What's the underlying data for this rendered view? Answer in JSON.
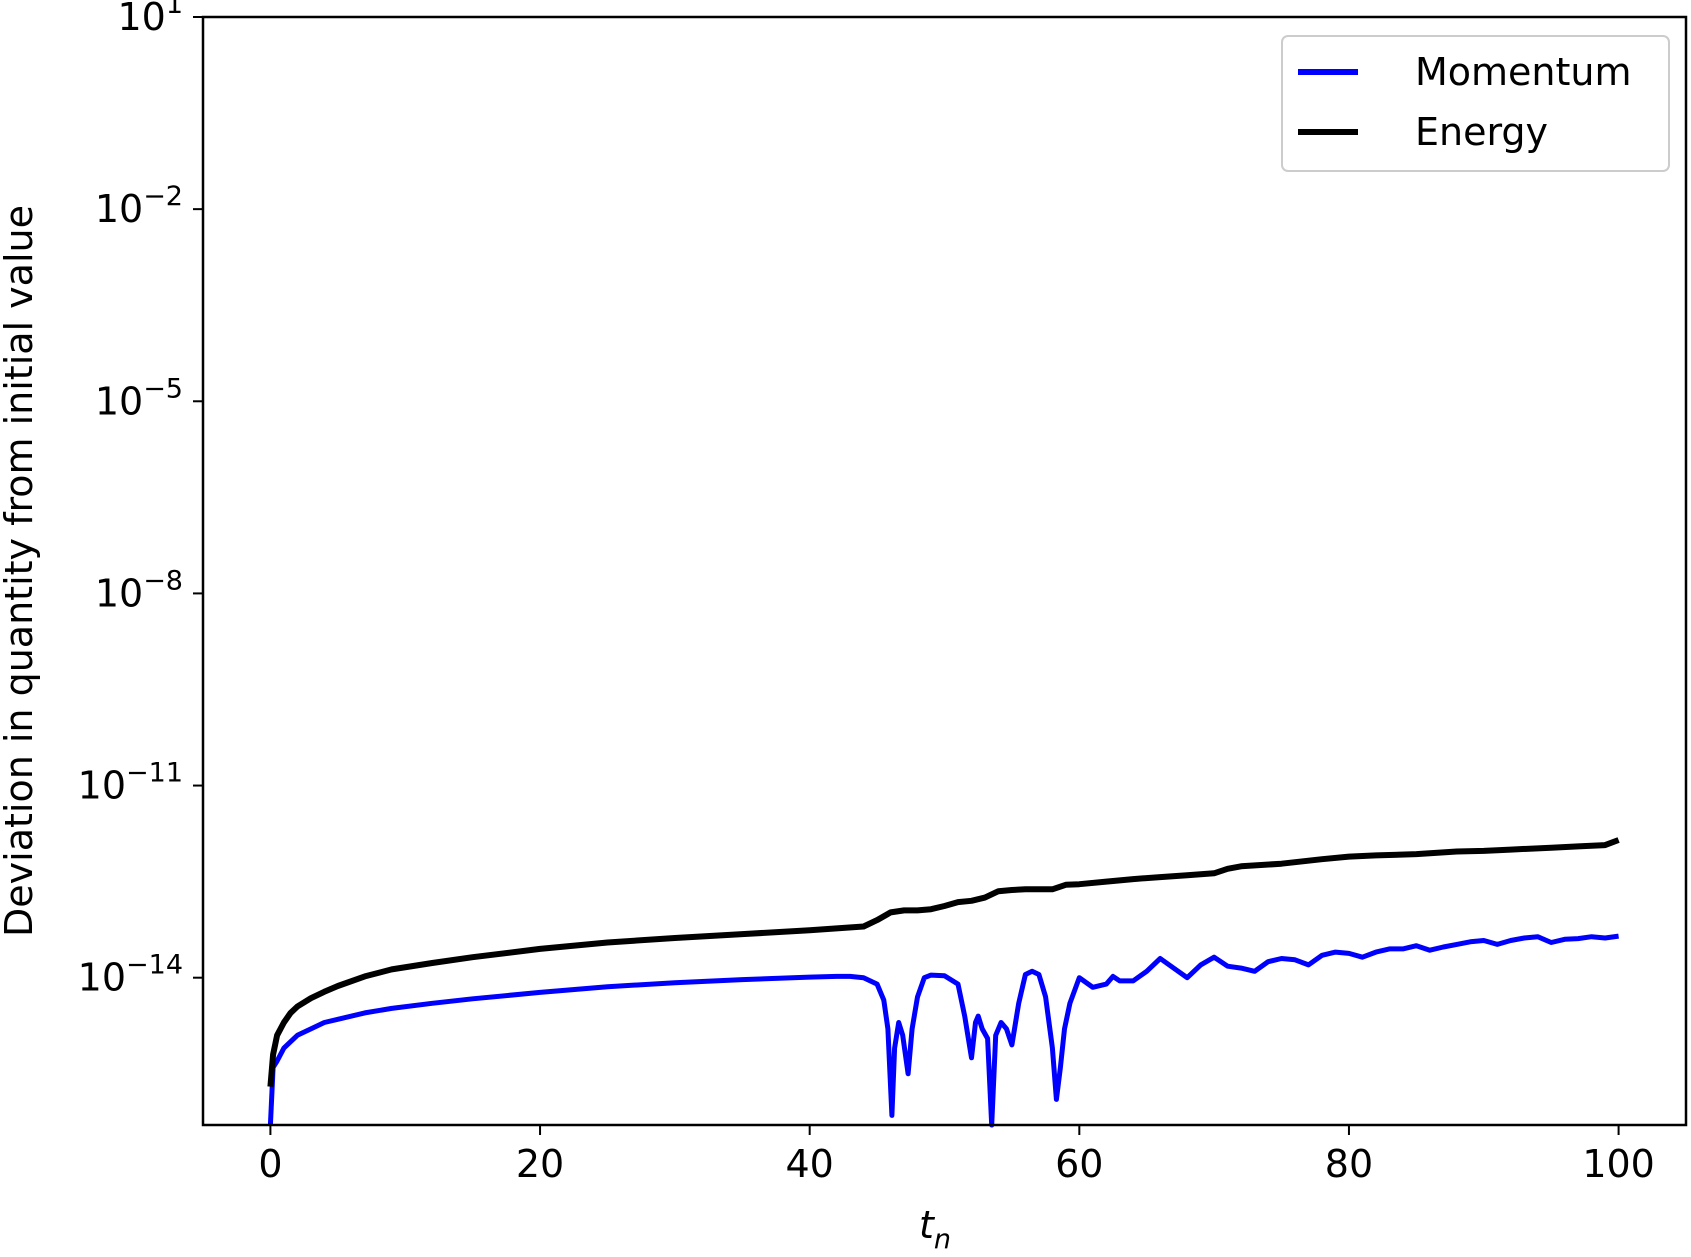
{
  "chart_data": {
    "type": "line",
    "xlabel": "t",
    "xlabel_subscript": "n",
    "ylabel": "Deviation in quantity from initial value",
    "xlim": [
      -5,
      105
    ],
    "ylim_log10": [
      -16.3,
      1
    ],
    "y_scale": "log",
    "x_ticks": [
      0,
      20,
      40,
      60,
      80,
      100
    ],
    "y_ticks": [
      {
        "base": "10",
        "exp": "1"
      },
      {
        "base": "10",
        "exp": "−2"
      },
      {
        "base": "10",
        "exp": "−5"
      },
      {
        "base": "10",
        "exp": "−8"
      },
      {
        "base": "10",
        "exp": "−11"
      },
      {
        "base": "10",
        "exp": "−14"
      }
    ],
    "legend_position": "top-right",
    "grid": false,
    "series": [
      {
        "name": "Momentum",
        "color": "#0000ff",
        "x": [
          0,
          0.2,
          0.5,
          1,
          1.5,
          2,
          3,
          4,
          5,
          7,
          9,
          12,
          15,
          20,
          25,
          30,
          35,
          40,
          42,
          43,
          44,
          45,
          45.5,
          45.8,
          46.1,
          46.3,
          46.6,
          46.9,
          47.3,
          47.6,
          48,
          48.5,
          49,
          50,
          51,
          51.5,
          52,
          52.3,
          52.5,
          52.8,
          53.2,
          53.5,
          53.8,
          54.2,
          54.6,
          55,
          55.5,
          56,
          56.5,
          57,
          57.5,
          58,
          58.3,
          58.6,
          58.9,
          59.3,
          60,
          61,
          62,
          62.5,
          63,
          64,
          65,
          66,
          67,
          68,
          69,
          70,
          71,
          72,
          73,
          74,
          75,
          76,
          77,
          78,
          79,
          80,
          81,
          82,
          83,
          84,
          85,
          86,
          87,
          88,
          89,
          90,
          91,
          92,
          93,
          94,
          95,
          96,
          97,
          98,
          99,
          100
        ],
        "log10_values": [
          -16.3,
          -15.4,
          -15.3,
          -15.1,
          -15.0,
          -14.9,
          -14.8,
          -14.7,
          -14.65,
          -14.55,
          -14.48,
          -14.4,
          -14.33,
          -14.23,
          -14.14,
          -14.08,
          -14.03,
          -13.99,
          -13.98,
          -13.98,
          -14.0,
          -14.1,
          -14.35,
          -14.8,
          -16.15,
          -15.1,
          -14.7,
          -14.9,
          -15.5,
          -14.8,
          -14.3,
          -14.0,
          -13.96,
          -13.97,
          -14.1,
          -14.6,
          -15.25,
          -14.7,
          -14.6,
          -14.8,
          -14.95,
          -16.3,
          -14.9,
          -14.7,
          -14.8,
          -15.05,
          -14.4,
          -13.95,
          -13.9,
          -13.95,
          -14.3,
          -15.1,
          -15.9,
          -15.4,
          -14.8,
          -14.4,
          -14.0,
          -14.15,
          -14.1,
          -13.98,
          -14.05,
          -14.05,
          -13.9,
          -13.7,
          -13.85,
          -14.0,
          -13.8,
          -13.68,
          -13.82,
          -13.85,
          -13.9,
          -13.75,
          -13.7,
          -13.72,
          -13.8,
          -13.65,
          -13.6,
          -13.62,
          -13.68,
          -13.6,
          -13.55,
          -13.55,
          -13.5,
          -13.57,
          -13.52,
          -13.48,
          -13.44,
          -13.42,
          -13.48,
          -13.42,
          -13.38,
          -13.36,
          -13.45,
          -13.4,
          -13.39,
          -13.36,
          -13.38,
          -13.35
        ],
        "line_width": 5
      },
      {
        "name": "Energy",
        "color": "#000000",
        "x": [
          0,
          0.2,
          0.5,
          1,
          1.5,
          2,
          3,
          4,
          5,
          7,
          9,
          12,
          15,
          20,
          25,
          30,
          35,
          40,
          44,
          45,
          46,
          47,
          48,
          49,
          50,
          51,
          52,
          53,
          54,
          55,
          56,
          57,
          58,
          59,
          60,
          62,
          64,
          66,
          68,
          70,
          71,
          72,
          75,
          78,
          80,
          82,
          85,
          88,
          90,
          92,
          95,
          97,
          99,
          100
        ],
        "log10_values": [
          -15.7,
          -15.2,
          -14.9,
          -14.7,
          -14.55,
          -14.45,
          -14.32,
          -14.22,
          -14.13,
          -13.98,
          -13.87,
          -13.77,
          -13.68,
          -13.55,
          -13.45,
          -13.38,
          -13.32,
          -13.26,
          -13.2,
          -13.1,
          -12.98,
          -12.95,
          -12.95,
          -12.93,
          -12.88,
          -12.82,
          -12.8,
          -12.75,
          -12.65,
          -12.63,
          -12.62,
          -12.62,
          -12.62,
          -12.55,
          -12.54,
          -12.5,
          -12.46,
          -12.43,
          -12.4,
          -12.37,
          -12.3,
          -12.26,
          -12.22,
          -12.15,
          -12.11,
          -12.09,
          -12.07,
          -12.03,
          -12.02,
          -12.0,
          -11.97,
          -11.95,
          -11.93,
          -11.85
        ],
        "line_width": 6
      }
    ]
  }
}
